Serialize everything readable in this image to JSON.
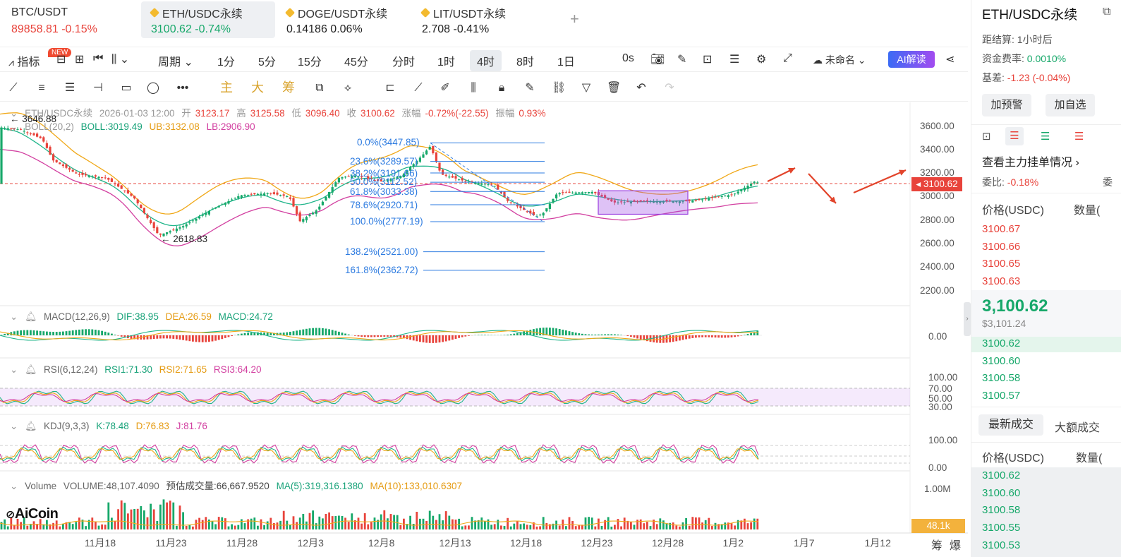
{
  "tabs": [
    {
      "name": "BTC/USDT",
      "price": "89858.81",
      "change": "-0.15%",
      "dir": "down",
      "active": false,
      "coin": false
    },
    {
      "name": "ETH/USDC永续",
      "price": "3100.62",
      "change": "-0.74%",
      "dir": "up",
      "active": true,
      "coin": true
    },
    {
      "name": "DOGE/USDT永续",
      "price": "0.14186",
      "change": "0.06%",
      "dir": "neutral",
      "active": false,
      "coin": true
    },
    {
      "name": "LIT/USDT永续",
      "price": "2.708",
      "change": "-0.41%",
      "dir": "neutral",
      "active": false,
      "coin": true
    }
  ],
  "add_tab": "+",
  "toolbar": {
    "indicator": "指标",
    "new_badge": "NEW",
    "period": "周期",
    "intervals": [
      "1分",
      "5分",
      "15分",
      "45分",
      "分时",
      "1时",
      "4时",
      "8时",
      "1日"
    ],
    "selected_interval": "4时",
    "countdown": "0s",
    "layout_name": "未命名",
    "ai_label": "AI解读"
  },
  "draw_toolbar": {
    "main": "主",
    "big": "大",
    "chips": "筹"
  },
  "chart": {
    "info": {
      "symbol": "ETH/USDC永续",
      "time": "2026-01-03 12:00",
      "open_label": "开",
      "open": "3123.17",
      "high_label": "高",
      "high": "3125.58",
      "low_label": "低",
      "low": "3096.40",
      "close_label": "收",
      "close": "3100.62",
      "chg_label": "涨幅",
      "chg": "-0.72%(-22.55)",
      "amp_label": "振幅",
      "amp": "0.93%"
    },
    "boll": {
      "label": "BOLL(20,2)",
      "boll": "BOLL:3019.49",
      "ub": "UB:3132.08",
      "lb": "LB:2906.90"
    },
    "macd": {
      "label": "MACD(12,26,9)",
      "dif": "DIF:38.95",
      "dea": "DEA:26.59",
      "macd": "MACD:24.72"
    },
    "rsi": {
      "label": "RSI(6,12,24)",
      "r1": "RSI1:71.30",
      "r2": "RSI2:71.65",
      "r3": "RSI3:64.20"
    },
    "kdj": {
      "label": "KDJ(9,3,3)",
      "k": "K:78.48",
      "d": "D:76.83",
      "j": "J:81.76"
    },
    "volume": {
      "label": "Volume",
      "vol": "VOLUME:48,107.4090",
      "est": "预估成交量:66,667.9520",
      "ma5": "MA(5):319,316.1380",
      "ma10": "MA(10):133,010.6307"
    },
    "high_mark": "3646.88",
    "low_mark": "2618.83",
    "fib": [
      "0.0%(3447.85)",
      "23.6%(3289.57)",
      "38.2%(3191.66)",
      "50.0%(3112.52)",
      "61.8%(3033.38)",
      "78.6%(2920.71)",
      "100.0%(2777.19)",
      "138.2%(2521.00)",
      "161.8%(2362.72)"
    ],
    "price_axis": [
      "3600.00",
      "3400.00",
      "3200.00",
      "3000.00",
      "2800.00",
      "2600.00",
      "2400.00",
      "2200.00"
    ],
    "macd_axis": [
      "0.00"
    ],
    "rsi_axis": [
      "100.00",
      "70.00",
      "50.00",
      "30.00"
    ],
    "kdj_axis": [
      "100.00",
      "0.00"
    ],
    "vol_axis": [
      "1.00M"
    ],
    "last_price": "3100.62",
    "last_volume": "48.1k",
    "x_axis": [
      "11月18",
      "11月23",
      "11月28",
      "12月3",
      "12月8",
      "12月13",
      "12月18",
      "12月23",
      "12月28",
      "1月2",
      "1月7",
      "1月12"
    ],
    "bottom_buttons": [
      "筹",
      "爆"
    ],
    "logo": "AiCoin"
  },
  "panel": {
    "title": "ETH/USDC永续",
    "settle_label": "距结算:",
    "settle": "1小时后",
    "funding_label": "资金费率:",
    "funding": "0.0010%",
    "basis_label": "基差:",
    "basis": "-1.23 (-0.04%)",
    "alert_btn": "加预警",
    "fav_btn": "加自选",
    "orderbook_link": "查看主力挂单情况",
    "ratio_label": "委比:",
    "ratio": "-0.18%",
    "ratio_extra": "委",
    "col_price": "价格(USDC)",
    "col_qty": "数量(",
    "asks": [
      "3100.67",
      "3100.66",
      "3100.65",
      "3100.63"
    ],
    "last": "3,100.62",
    "last_usd": "$3,101.24",
    "bids": [
      "3100.62",
      "3100.60",
      "3100.58",
      "3100.57"
    ],
    "trade_tab1": "最新成交",
    "trade_tab2": "大额成交",
    "trades": [
      "3100.62",
      "3100.60",
      "3100.58",
      "3100.55",
      "3100.53"
    ],
    "colors": {
      "up": "#17a86a",
      "down": "#e8433b",
      "accent": "#3b6bf5"
    }
  }
}
